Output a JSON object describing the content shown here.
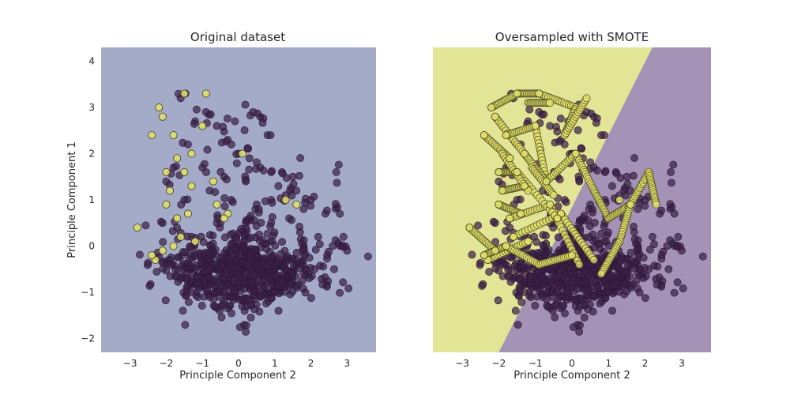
{
  "chart_data": [
    {
      "type": "scatter",
      "title": "Original dataset",
      "xlabel": "Principle Component 2",
      "ylabel": "Principle Component 1",
      "xlim": [
        -3.8,
        3.8
      ],
      "ylim": [
        -2.3,
        4.3
      ],
      "xticks": [
        -3,
        -2,
        -1,
        0,
        1,
        2,
        3
      ],
      "yticks": [
        -2,
        -1,
        0,
        1,
        2,
        3,
        4
      ],
      "background": "#a3abc8",
      "grid": false,
      "series": [
        {
          "color": "#3b1f46",
          "values_note_none": "",
          "points": [
            [
              1.2,
              1.6
            ],
            [
              1.5,
              1.5
            ],
            [
              2.7,
              1.6
            ],
            [
              2.8,
              0.7
            ],
            [
              2.4,
              0.7
            ],
            [
              2.0,
              1.0
            ],
            [
              1.8,
              0.8
            ],
            [
              1.6,
              1.2
            ],
            [
              1.3,
              1.1
            ],
            [
              0.9,
              1.6
            ],
            [
              0.6,
              1.7
            ],
            [
              0.3,
              1.9
            ],
            [
              0.0,
              2.0
            ],
            [
              -0.3,
              2.3
            ],
            [
              -0.6,
              2.6
            ],
            [
              -0.9,
              2.9
            ],
            [
              -1.2,
              2.7
            ],
            [
              0.6,
              2.8
            ],
            [
              0.4,
              2.9
            ],
            [
              -0.1,
              2.7
            ],
            [
              -1.4,
              2.2
            ],
            [
              -1.8,
              1.7
            ],
            [
              -2.0,
              1.4
            ],
            [
              -1.5,
              1.0
            ],
            [
              -0.8,
              1.2
            ],
            [
              -0.4,
              1.5
            ],
            [
              0.2,
              1.4
            ],
            [
              0.9,
              1.0
            ],
            [
              1.7,
              0.3
            ],
            [
              2.2,
              0.2
            ],
            [
              2.6,
              0.0
            ],
            [
              2.9,
              0.2
            ],
            [
              3.0,
              -0.1
            ],
            [
              -2.1,
              0.5
            ],
            [
              -1.7,
              0.4
            ],
            [
              -1.3,
              0.2
            ],
            [
              -0.6,
              0.5
            ],
            [
              0.3,
              0.6
            ],
            [
              0.9,
              0.5
            ],
            [
              1.4,
              0.6
            ],
            [
              -1.9,
              -0.3
            ],
            [
              -1.5,
              -0.5
            ],
            [
              -1.1,
              -0.9
            ],
            [
              -0.8,
              -1.1
            ],
            [
              -0.4,
              -1.2
            ],
            [
              0.1,
              -1.3
            ],
            [
              0.6,
              -1.1
            ],
            [
              1.0,
              -1.0
            ],
            [
              1.4,
              -0.8
            ],
            [
              1.8,
              -0.6
            ],
            [
              2.1,
              -0.5
            ],
            [
              -0.2,
              1.0
            ],
            [
              0.5,
              0.9
            ],
            [
              1.1,
              1.3
            ],
            [
              -1.0,
              1.7
            ],
            [
              -0.2,
              2.2
            ],
            [
              0.8,
              2.4
            ],
            [
              -1.6,
              3.2
            ]
          ],
          "cluster": {
            "cx": 0.1,
            "cy": -0.55,
            "sx": 1.05,
            "sy": 0.35,
            "n": 650
          }
        },
        {
          "color": "#e3e06b",
          "points": [
            [
              -2.8,
              0.4
            ],
            [
              -2.3,
              -0.3
            ],
            [
              -2.1,
              -0.1
            ],
            [
              -2.0,
              0.9
            ],
            [
              -1.9,
              1.2
            ],
            [
              -1.7,
              0.6
            ],
            [
              -1.6,
              0.2
            ],
            [
              -1.4,
              0.7
            ],
            [
              -1.3,
              1.3
            ],
            [
              -1.2,
              0.1
            ],
            [
              -2.2,
              3.0
            ],
            [
              -2.1,
              2.8
            ],
            [
              -1.8,
              2.4
            ],
            [
              -1.5,
              3.3
            ],
            [
              -0.9,
              3.3
            ],
            [
              -1.0,
              2.6
            ],
            [
              -1.3,
              2.0
            ],
            [
              -2.4,
              2.4
            ],
            [
              -1.7,
              1.9
            ],
            [
              -0.7,
              1.4
            ],
            [
              -0.6,
              0.9
            ],
            [
              -0.3,
              0.7
            ],
            [
              -2.0,
              1.6
            ],
            [
              -1.5,
              1.6
            ],
            [
              0.1,
              2.0
            ],
            [
              -0.4,
              0.6
            ],
            [
              -2.4,
              -0.2
            ],
            [
              -1.8,
              0.0
            ],
            [
              1.6,
              0.9
            ],
            [
              1.3,
              1.0
            ]
          ]
        }
      ]
    },
    {
      "type": "scatter",
      "title": "Oversampled with SMOTE",
      "xlabel": "Principle Component 2",
      "ylabel": "",
      "xlim": [
        -3.8,
        3.8
      ],
      "ylim": [
        -2.3,
        4.3
      ],
      "xticks": [
        -3,
        -2,
        -1,
        0,
        1,
        2,
        3
      ],
      "yticks": [],
      "background_regions": {
        "left": "#e2e496",
        "right": "#a493b6",
        "boundary": [
          [
            -2.0,
            -2.3
          ],
          [
            2.2,
            4.3
          ]
        ]
      },
      "grid": false,
      "series": [
        {
          "color": "#3b1f46",
          "points": [
            [
              1.2,
              1.6
            ],
            [
              1.5,
              1.5
            ],
            [
              2.7,
              1.6
            ],
            [
              2.8,
              0.7
            ],
            [
              2.4,
              0.7
            ],
            [
              2.0,
              1.0
            ],
            [
              1.8,
              0.8
            ],
            [
              1.6,
              1.2
            ],
            [
              1.3,
              1.1
            ],
            [
              0.9,
              1.6
            ],
            [
              0.6,
              1.7
            ],
            [
              0.3,
              1.9
            ],
            [
              0.0,
              2.0
            ],
            [
              -0.3,
              2.3
            ],
            [
              -0.6,
              2.6
            ],
            [
              -0.9,
              2.9
            ],
            [
              -1.2,
              2.7
            ],
            [
              0.6,
              2.8
            ],
            [
              0.4,
              2.9
            ],
            [
              -0.1,
              2.7
            ],
            [
              -1.4,
              2.2
            ],
            [
              -1.8,
              1.7
            ],
            [
              -2.0,
              1.4
            ],
            [
              -1.5,
              1.0
            ],
            [
              -0.8,
              1.2
            ],
            [
              -0.4,
              1.5
            ],
            [
              0.2,
              1.4
            ],
            [
              0.9,
              1.0
            ],
            [
              1.7,
              0.3
            ],
            [
              2.2,
              0.2
            ],
            [
              2.6,
              0.0
            ],
            [
              2.9,
              0.2
            ],
            [
              3.0,
              -0.1
            ],
            [
              -2.1,
              0.5
            ],
            [
              -1.7,
              0.4
            ],
            [
              -1.3,
              0.2
            ],
            [
              -0.6,
              0.5
            ],
            [
              0.3,
              0.6
            ],
            [
              0.9,
              0.5
            ],
            [
              1.4,
              0.6
            ],
            [
              -1.9,
              -0.3
            ],
            [
              -1.5,
              -0.5
            ],
            [
              -1.1,
              -0.9
            ],
            [
              -0.8,
              -1.1
            ],
            [
              -0.4,
              -1.2
            ],
            [
              0.1,
              -1.3
            ],
            [
              0.6,
              -1.1
            ],
            [
              1.0,
              -1.0
            ],
            [
              1.4,
              -0.8
            ],
            [
              1.8,
              -0.6
            ],
            [
              2.1,
              -0.5
            ],
            [
              -0.2,
              1.0
            ],
            [
              0.5,
              0.9
            ],
            [
              1.1,
              1.3
            ],
            [
              -1.0,
              1.7
            ],
            [
              -0.2,
              2.2
            ],
            [
              0.8,
              2.4
            ],
            [
              -1.6,
              3.2
            ]
          ],
          "cluster": {
            "cx": 0.1,
            "cy": -0.55,
            "sx": 1.05,
            "sy": 0.35,
            "n": 650
          }
        },
        {
          "color": "#e3e06b",
          "segments": [
            [
              [
                -2.8,
                0.4
              ],
              [
                -2.1,
                -0.1
              ]
            ],
            [
              [
                -2.3,
                -0.3
              ],
              [
                -1.2,
                0.1
              ]
            ],
            [
              [
                -2.0,
                0.9
              ],
              [
                -1.4,
                0.7
              ]
            ],
            [
              [
                -1.9,
                1.2
              ],
              [
                -1.3,
                1.3
              ]
            ],
            [
              [
                -1.7,
                0.6
              ],
              [
                -0.6,
                0.9
              ]
            ],
            [
              [
                -1.6,
                0.2
              ],
              [
                -0.3,
                0.7
              ]
            ],
            [
              [
                -2.2,
                3.0
              ],
              [
                -1.5,
                3.3
              ]
            ],
            [
              [
                -2.1,
                2.8
              ],
              [
                -1.3,
                2.0
              ]
            ],
            [
              [
                -1.8,
                2.4
              ],
              [
                -1.0,
                2.6
              ]
            ],
            [
              [
                -1.5,
                3.3
              ],
              [
                -0.9,
                3.3
              ]
            ],
            [
              [
                -2.4,
                2.4
              ],
              [
                -1.7,
                1.9
              ]
            ],
            [
              [
                -1.0,
                2.6
              ],
              [
                -0.7,
                1.4
              ]
            ],
            [
              [
                -1.3,
                2.0
              ],
              [
                -0.7,
                1.4
              ]
            ],
            [
              [
                -0.9,
                3.3
              ],
              [
                0.1,
                3.0
              ]
            ],
            [
              [
                0.1,
                3.0
              ],
              [
                -0.2,
                2.4
              ]
            ],
            [
              [
                -0.7,
                1.4
              ],
              [
                0.1,
                2.0
              ]
            ],
            [
              [
                0.1,
                2.0
              ],
              [
                0.6,
                1.2
              ]
            ],
            [
              [
                -0.6,
                0.9
              ],
              [
                0.2,
                -0.4
              ]
            ],
            [
              [
                -0.3,
                0.7
              ],
              [
                0.6,
                -0.3
              ]
            ],
            [
              [
                0.6,
                1.2
              ],
              [
                1.0,
                0.6
              ]
            ],
            [
              [
                1.0,
                0.6
              ],
              [
                1.6,
                0.9
              ]
            ],
            [
              [
                1.6,
                0.9
              ],
              [
                1.3,
                0.1
              ]
            ],
            [
              [
                1.3,
                0.1
              ],
              [
                0.8,
                -0.6
              ]
            ],
            [
              [
                -2.0,
                1.6
              ],
              [
                -1.5,
                1.6
              ]
            ],
            [
              [
                -1.5,
                1.6
              ],
              [
                -0.4,
                0.6
              ]
            ],
            [
              [
                -2.4,
                -0.2
              ],
              [
                -1.8,
                0.0
              ]
            ],
            [
              [
                -1.8,
                0.0
              ],
              [
                -0.9,
                -0.4
              ]
            ],
            [
              [
                -0.9,
                -0.4
              ],
              [
                0.0,
                -0.2
              ]
            ],
            [
              [
                1.6,
                0.9
              ],
              [
                2.1,
                1.6
              ]
            ],
            [
              [
                2.1,
                1.6
              ],
              [
                2.3,
                0.9
              ]
            ],
            [
              [
                -1.1,
                1.7
              ],
              [
                -0.5,
                1.1
              ]
            ],
            [
              [
                -0.2,
                2.4
              ],
              [
                0.4,
                3.2
              ]
            ],
            [
              [
                -1.2,
                3.1
              ],
              [
                -0.6,
                3.1
              ]
            ],
            [
              [
                -1.9,
                2.0
              ],
              [
                -1.2,
                1.2
              ]
            ]
          ],
          "points": [
            [
              -2.8,
              0.4
            ],
            [
              -2.3,
              -0.3
            ],
            [
              -2.1,
              -0.1
            ],
            [
              -2.0,
              0.9
            ],
            [
              -1.9,
              1.2
            ],
            [
              -1.7,
              0.6
            ],
            [
              -1.6,
              0.2
            ],
            [
              -1.4,
              0.7
            ],
            [
              -1.3,
              1.3
            ],
            [
              -1.2,
              0.1
            ],
            [
              -2.2,
              3.0
            ],
            [
              -2.1,
              2.8
            ],
            [
              -1.8,
              2.4
            ],
            [
              -1.5,
              3.3
            ],
            [
              -0.9,
              3.3
            ],
            [
              -1.0,
              2.6
            ],
            [
              -1.3,
              2.0
            ],
            [
              -2.4,
              2.4
            ],
            [
              -1.7,
              1.9
            ],
            [
              -0.7,
              1.4
            ],
            [
              -0.6,
              0.9
            ],
            [
              -0.3,
              0.7
            ],
            [
              -2.0,
              1.6
            ],
            [
              -1.5,
              1.6
            ],
            [
              0.1,
              2.0
            ],
            [
              -0.4,
              0.6
            ],
            [
              -2.4,
              -0.2
            ],
            [
              -1.8,
              0.0
            ],
            [
              1.6,
              0.9
            ],
            [
              1.3,
              1.0
            ]
          ]
        }
      ]
    }
  ]
}
